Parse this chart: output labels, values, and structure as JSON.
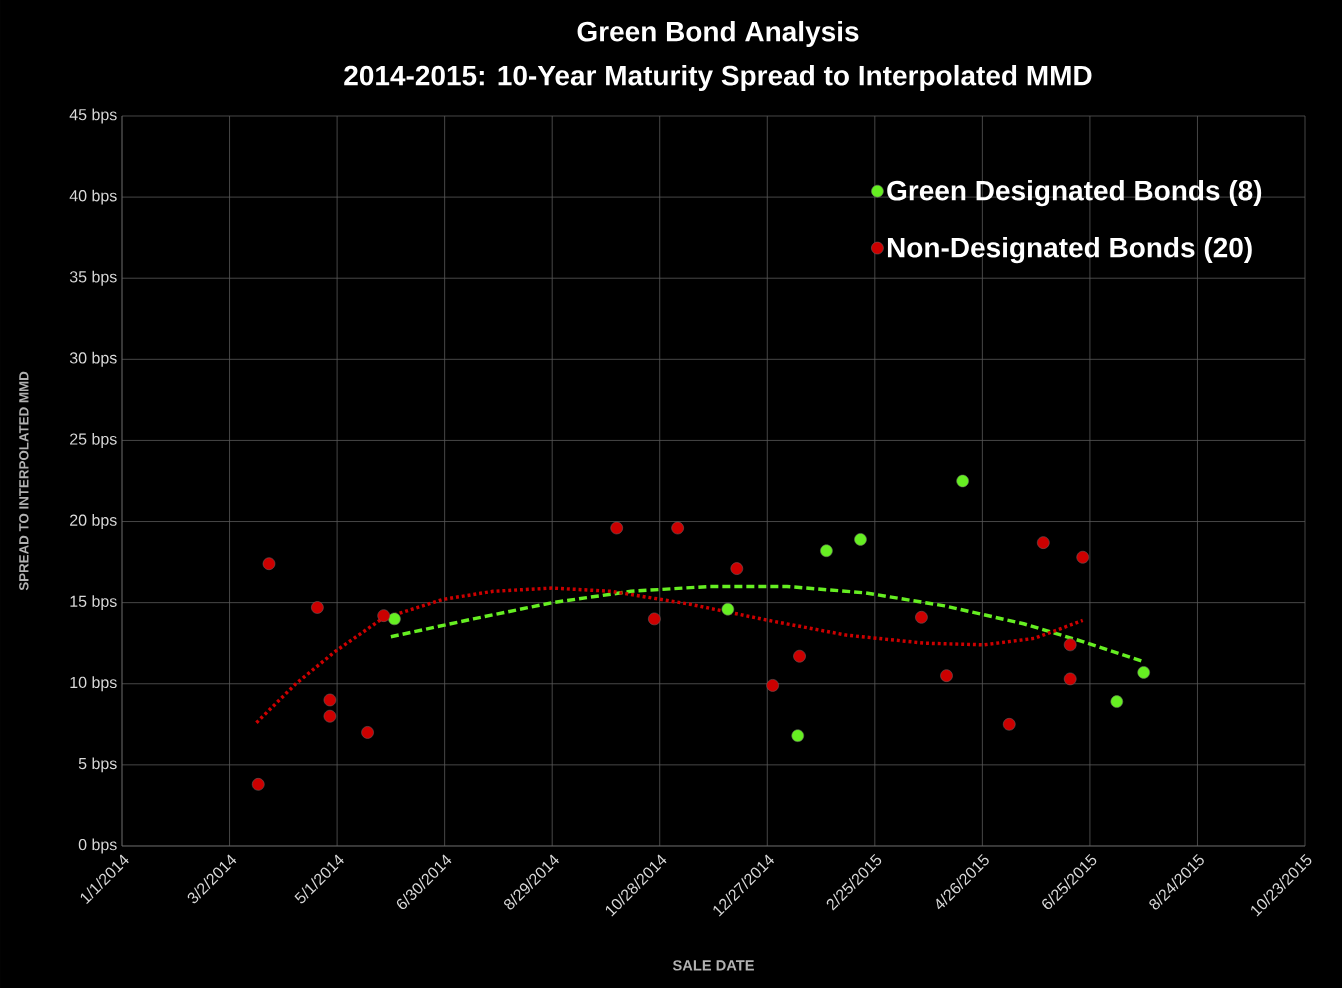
{
  "chart_data": {
    "type": "scatter",
    "title": "Green Bond Analysis",
    "subtitle": "2014-2015: 10-Year Maturity Spread to Interpolated MMD",
    "xlabel": "SALE DATE",
    "ylabel": "SPREAD TO INTERPOLATED  MMD",
    "xlim": [
      "2014-01-01",
      "2015-10-23"
    ],
    "xticks": [
      {
        "value": "2014-01-01",
        "label": "1/1/2014"
      },
      {
        "value": "2014-03-02",
        "label": "3/2/2014"
      },
      {
        "value": "2014-05-01",
        "label": "5/1/2014"
      },
      {
        "value": "2014-06-30",
        "label": "6/30/2014"
      },
      {
        "value": "2014-08-29",
        "label": "8/29/2014"
      },
      {
        "value": "2014-10-28",
        "label": "10/28/2014"
      },
      {
        "value": "2014-12-27",
        "label": "12/27/2014"
      },
      {
        "value": "2015-02-25",
        "label": "2/25/2015"
      },
      {
        "value": "2015-04-26",
        "label": "4/26/2015"
      },
      {
        "value": "2015-06-25",
        "label": "6/25/2015"
      },
      {
        "value": "2015-08-24",
        "label": "8/24/2015"
      },
      {
        "value": "2015-10-23",
        "label": "10/23/2015"
      }
    ],
    "ylim": [
      0,
      45
    ],
    "yticks": [
      {
        "value": 0,
        "label": "0 bps"
      },
      {
        "value": 5,
        "label": "5 bps"
      },
      {
        "value": 10,
        "label": "10 bps"
      },
      {
        "value": 15,
        "label": "15 bps"
      },
      {
        "value": 20,
        "label": "20 bps"
      },
      {
        "value": 25,
        "label": "25 bps"
      },
      {
        "value": 30,
        "label": "30 bps"
      },
      {
        "value": 35,
        "label": "35 bps"
      },
      {
        "value": 40,
        "label": "40 bps"
      },
      {
        "value": 45,
        "label": "45 bps"
      }
    ],
    "grid": true,
    "legend": "top right",
    "series": [
      {
        "name": "Green Designated Bonds (8)",
        "color": "#66ee22",
        "marker": "circle",
        "x": [
          "2014-06-02",
          "2014-12-05",
          "2015-01-13",
          "2015-01-29",
          "2015-02-17",
          "2015-04-15",
          "2015-07-10",
          "2015-07-25"
        ],
        "values": [
          14.0,
          14.6,
          6.8,
          18.2,
          18.9,
          22.5,
          8.9,
          10.7
        ]
      },
      {
        "name": "Non-Designated Bonds (20)",
        "color": "#cc0000",
        "marker": "circle",
        "x": [
          "2014-03-18",
          "2014-03-24",
          "2014-04-20",
          "2014-04-27",
          "2014-04-27",
          "2014-05-18",
          "2014-05-27",
          "2014-10-04",
          "2014-10-25",
          "2014-11-07",
          "2014-12-10",
          "2014-12-30",
          "2015-01-14",
          "2015-03-23",
          "2015-04-06",
          "2015-05-11",
          "2015-05-30",
          "2015-06-14",
          "2015-06-14",
          "2015-06-21"
        ],
        "values": [
          3.8,
          17.4,
          14.7,
          9.0,
          8.0,
          7.0,
          14.2,
          19.6,
          14.0,
          19.6,
          17.1,
          9.9,
          11.7,
          14.1,
          10.5,
          7.5,
          18.7,
          12.4,
          10.3,
          17.8
        ]
      },
      {
        "type": "line",
        "line_style": "dashed",
        "marker": "none",
        "color": "#66ee22",
        "x": [
          "2014-05-31",
          "2014-07-16",
          "2014-08-29",
          "2014-10-12",
          "2014-11-25",
          "2015-01-07",
          "2015-02-20",
          "2015-04-05",
          "2015-05-19",
          "2015-06-21",
          "2015-07-24"
        ],
        "values": [
          12.9,
          14.0,
          15.0,
          15.7,
          16.0,
          16.0,
          15.6,
          14.8,
          13.7,
          12.6,
          11.4
        ]
      },
      {
        "type": "line",
        "line_style": "dotted",
        "marker": "none",
        "color": "#cc0000",
        "x": [
          "2014-03-17",
          "2014-04-08",
          "2014-04-30",
          "2014-05-26",
          "2014-06-29",
          "2014-07-27",
          "2014-08-29",
          "2014-10-01",
          "2014-11-14",
          "2014-12-28",
          "2015-02-09",
          "2015-03-25",
          "2015-04-27",
          "2015-05-25",
          "2015-06-21"
        ],
        "values": [
          7.6,
          10.0,
          12.0,
          14.0,
          15.2,
          15.7,
          15.9,
          15.7,
          14.9,
          13.9,
          13.0,
          12.5,
          12.4,
          12.8,
          13.9
        ]
      }
    ]
  }
}
